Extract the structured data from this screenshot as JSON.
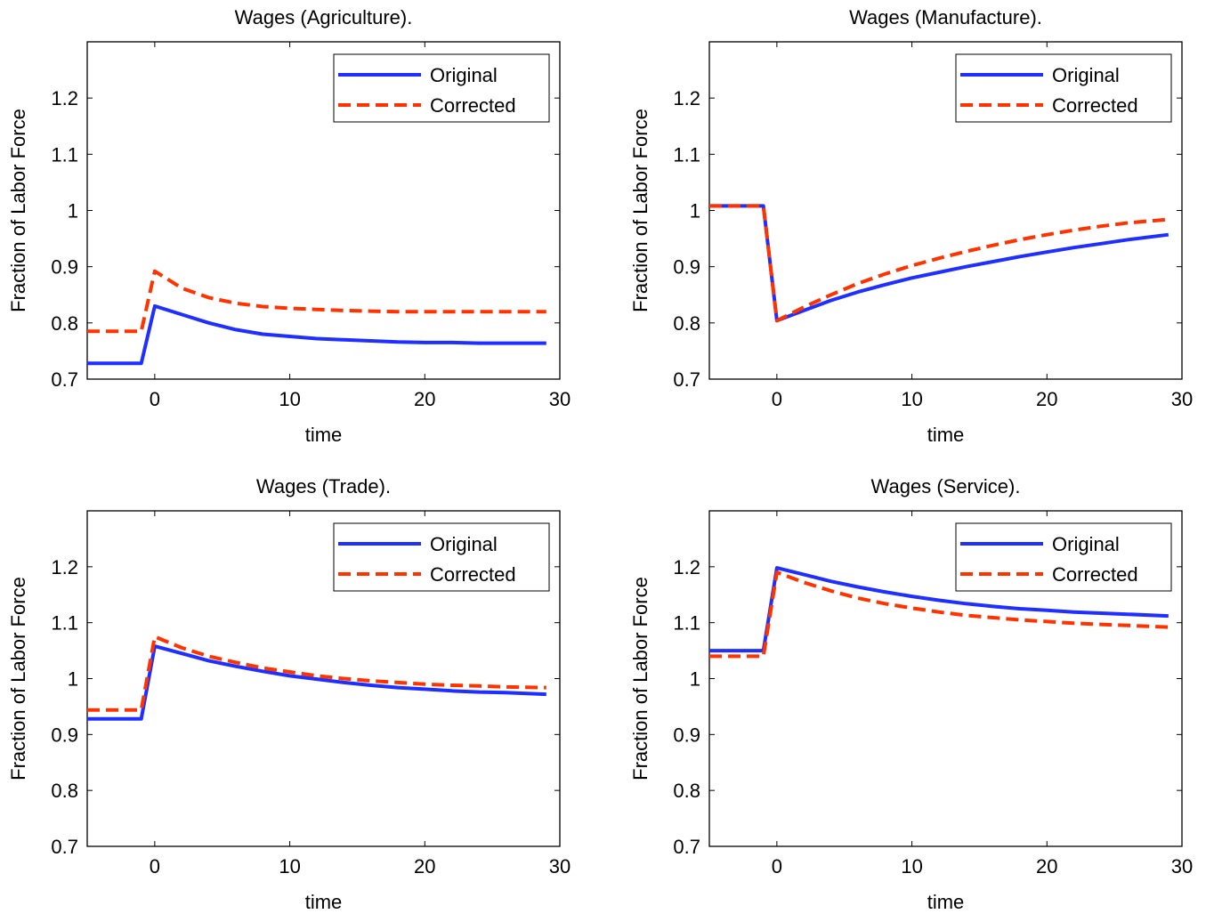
{
  "figure": {
    "background": "#ffffff"
  },
  "chart_data": [
    {
      "type": "line",
      "title": "Wages (Agriculture).",
      "xlabel": "time",
      "ylabel": "Fraction of Labor Force",
      "xlim": [
        -5,
        30
      ],
      "ylim": [
        0.7,
        1.3
      ],
      "xticks": [
        "0",
        "10",
        "20",
        "30"
      ],
      "yticks": [
        "0.7",
        "0.8",
        "0.9",
        "1",
        "1.1",
        "1.2"
      ],
      "grid": false,
      "legend_position": "top-right",
      "series": [
        {
          "name": "Original",
          "color": "#1f2fff",
          "style": "solid",
          "x": [
            -5,
            -1,
            0,
            2,
            4,
            6,
            8,
            10,
            12,
            14,
            16,
            18,
            20,
            22,
            24,
            26,
            29
          ],
          "y": [
            0.728,
            0.728,
            0.83,
            0.815,
            0.8,
            0.788,
            0.78,
            0.776,
            0.772,
            0.77,
            0.768,
            0.766,
            0.765,
            0.765,
            0.764,
            0.764,
            0.764
          ]
        },
        {
          "name": "Corrected",
          "color": "#ff3300",
          "style": "dashed",
          "x": [
            -5,
            -1,
            0,
            2,
            4,
            6,
            8,
            10,
            12,
            14,
            16,
            18,
            20,
            22,
            24,
            26,
            29
          ],
          "y": [
            0.785,
            0.785,
            0.892,
            0.862,
            0.845,
            0.835,
            0.829,
            0.826,
            0.824,
            0.822,
            0.821,
            0.82,
            0.82,
            0.82,
            0.82,
            0.82,
            0.82
          ]
        }
      ]
    },
    {
      "type": "line",
      "title": "Wages (Manufacture).",
      "xlabel": "time",
      "ylabel": "Fraction of Labor Force",
      "xlim": [
        -5,
        30
      ],
      "ylim": [
        0.7,
        1.3
      ],
      "xticks": [
        "0",
        "10",
        "20",
        "30"
      ],
      "yticks": [
        "0.7",
        "0.8",
        "0.9",
        "1",
        "1.1",
        "1.2"
      ],
      "grid": false,
      "legend_position": "top-right",
      "series": [
        {
          "name": "Original",
          "color": "#1f2fff",
          "style": "solid",
          "x": [
            -5,
            -1,
            0,
            2,
            4,
            6,
            8,
            10,
            12,
            14,
            16,
            18,
            20,
            22,
            24,
            26,
            29
          ],
          "y": [
            1.008,
            1.008,
            0.804,
            0.822,
            0.84,
            0.855,
            0.868,
            0.88,
            0.89,
            0.9,
            0.909,
            0.918,
            0.926,
            0.934,
            0.941,
            0.948,
            0.957
          ]
        },
        {
          "name": "Corrected",
          "color": "#ff3300",
          "style": "dashed",
          "x": [
            -5,
            -1,
            0,
            2,
            4,
            6,
            8,
            10,
            12,
            14,
            16,
            18,
            20,
            22,
            24,
            26,
            29
          ],
          "y": [
            1.008,
            1.008,
            0.804,
            0.828,
            0.85,
            0.87,
            0.887,
            0.902,
            0.915,
            0.927,
            0.938,
            0.948,
            0.957,
            0.965,
            0.972,
            0.978,
            0.984
          ]
        }
      ]
    },
    {
      "type": "line",
      "title": "Wages (Trade).",
      "xlabel": "time",
      "ylabel": "Fraction of Labor Force",
      "xlim": [
        -5,
        30
      ],
      "ylim": [
        0.7,
        1.3
      ],
      "xticks": [
        "0",
        "10",
        "20",
        "30"
      ],
      "yticks": [
        "0.7",
        "0.8",
        "0.9",
        "1",
        "1.1",
        "1.2"
      ],
      "grid": false,
      "legend_position": "top-right",
      "series": [
        {
          "name": "Original",
          "color": "#1f2fff",
          "style": "solid",
          "x": [
            -5,
            -1,
            0,
            2,
            4,
            6,
            8,
            10,
            12,
            14,
            16,
            18,
            20,
            22,
            24,
            26,
            29
          ],
          "y": [
            0.928,
            0.928,
            1.058,
            1.045,
            1.032,
            1.022,
            1.013,
            1.005,
            0.999,
            0.993,
            0.988,
            0.984,
            0.981,
            0.978,
            0.976,
            0.975,
            0.972
          ]
        },
        {
          "name": "Corrected",
          "color": "#ff3300",
          "style": "dashed",
          "x": [
            -5,
            -1,
            0,
            2,
            4,
            6,
            8,
            10,
            12,
            14,
            16,
            18,
            20,
            22,
            24,
            26,
            29
          ],
          "y": [
            0.944,
            0.944,
            1.075,
            1.055,
            1.04,
            1.029,
            1.019,
            1.012,
            1.005,
            1.0,
            0.996,
            0.993,
            0.99,
            0.988,
            0.987,
            0.985,
            0.984
          ]
        }
      ]
    },
    {
      "type": "line",
      "title": "Wages (Service).",
      "xlabel": "time",
      "ylabel": "Fraction of Labor Force",
      "xlim": [
        -5,
        30
      ],
      "ylim": [
        0.7,
        1.3
      ],
      "xticks": [
        "0",
        "10",
        "20",
        "30"
      ],
      "yticks": [
        "0.7",
        "0.8",
        "0.9",
        "1",
        "1.1",
        "1.2"
      ],
      "grid": false,
      "legend_position": "top-right",
      "series": [
        {
          "name": "Original",
          "color": "#1f2fff",
          "style": "solid",
          "x": [
            -5,
            -1,
            0,
            2,
            4,
            6,
            8,
            10,
            12,
            14,
            16,
            18,
            20,
            22,
            24,
            26,
            29
          ],
          "y": [
            1.05,
            1.05,
            1.198,
            1.186,
            1.174,
            1.164,
            1.155,
            1.147,
            1.14,
            1.134,
            1.129,
            1.125,
            1.122,
            1.119,
            1.117,
            1.115,
            1.112
          ]
        },
        {
          "name": "Corrected",
          "color": "#ff3300",
          "style": "dashed",
          "x": [
            -5,
            -1,
            0,
            2,
            4,
            6,
            8,
            10,
            12,
            14,
            16,
            18,
            20,
            22,
            24,
            26,
            29
          ],
          "y": [
            1.04,
            1.04,
            1.19,
            1.172,
            1.157,
            1.144,
            1.134,
            1.126,
            1.119,
            1.113,
            1.109,
            1.105,
            1.102,
            1.099,
            1.097,
            1.095,
            1.092
          ]
        }
      ]
    }
  ]
}
